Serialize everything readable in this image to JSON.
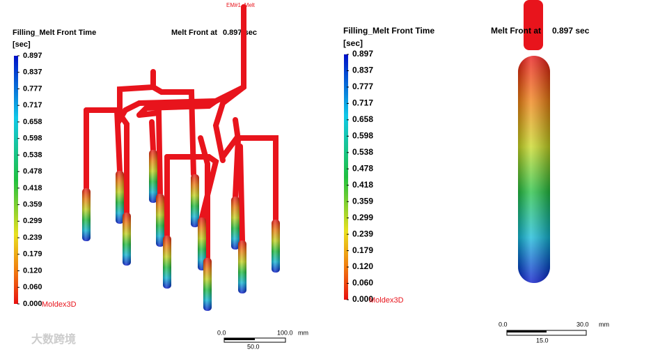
{
  "left_panel": {
    "annotation": "EM#1 -Melt",
    "title": "Filling_Melt Front Time",
    "unit": "[sec]",
    "status_label": "Melt Front at",
    "status_value": "0.897 sec",
    "legend_labels": [
      "0.897",
      "0.837",
      "0.777",
      "0.717",
      "0.658",
      "0.598",
      "0.538",
      "0.478",
      "0.418",
      "0.359",
      "0.299",
      "0.239",
      "0.179",
      "0.120",
      "0.060",
      "0.000"
    ],
    "brand": "Moldex3D",
    "scale": {
      "start": "0.0",
      "end": "100.0",
      "unit": "mm",
      "mid": "50.0"
    }
  },
  "right_panel": {
    "title": "Filling_Melt Front Time",
    "unit": "[sec]",
    "status_label": "Melt Front at",
    "status_value": "0.897 sec",
    "legend_labels": [
      "0.897",
      "0.837",
      "0.777",
      "0.717",
      "0.658",
      "0.598",
      "0.538",
      "0.478",
      "0.418",
      "0.359",
      "0.299",
      "0.239",
      "0.179",
      "0.120",
      "0.060",
      "0.000"
    ],
    "brand": "Moldex3D",
    "scale": {
      "start": "0.0",
      "end": "30.0",
      "unit": "mm",
      "mid": "15.0"
    }
  },
  "watermark": "大数跨境"
}
